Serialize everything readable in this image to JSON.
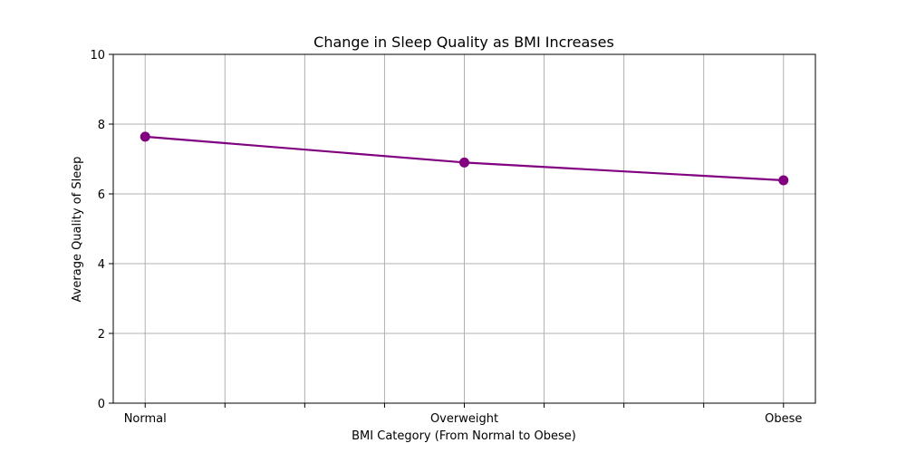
{
  "chart_data": {
    "type": "line",
    "title": "Change in Sleep Quality as BMI Increases",
    "xlabel": "BMI Category (From Normal to Obese)",
    "ylabel": "Average Quality of Sleep",
    "categories": [
      "Normal",
      "Overweight",
      "Obese"
    ],
    "x": [
      0,
      1,
      2
    ],
    "values": [
      7.64,
      6.9,
      6.39
    ],
    "xlim": [
      -0.1,
      2.1
    ],
    "ylim": [
      0,
      10
    ],
    "xticks": [
      0,
      0.25,
      0.5,
      0.75,
      1,
      1.25,
      1.5,
      1.75,
      2
    ],
    "xticklabels": [
      "Normal",
      "",
      "",
      "",
      "Overweight",
      "",
      "",
      "",
      "Obese"
    ],
    "yticks": [
      0,
      2,
      4,
      6,
      8,
      10
    ],
    "yticklabels": [
      "0",
      "2",
      "4",
      "6",
      "8",
      "10"
    ],
    "grid": true,
    "colors": {
      "line": "#800080",
      "grid": "#b0b0b0",
      "axes": "#000000"
    }
  }
}
